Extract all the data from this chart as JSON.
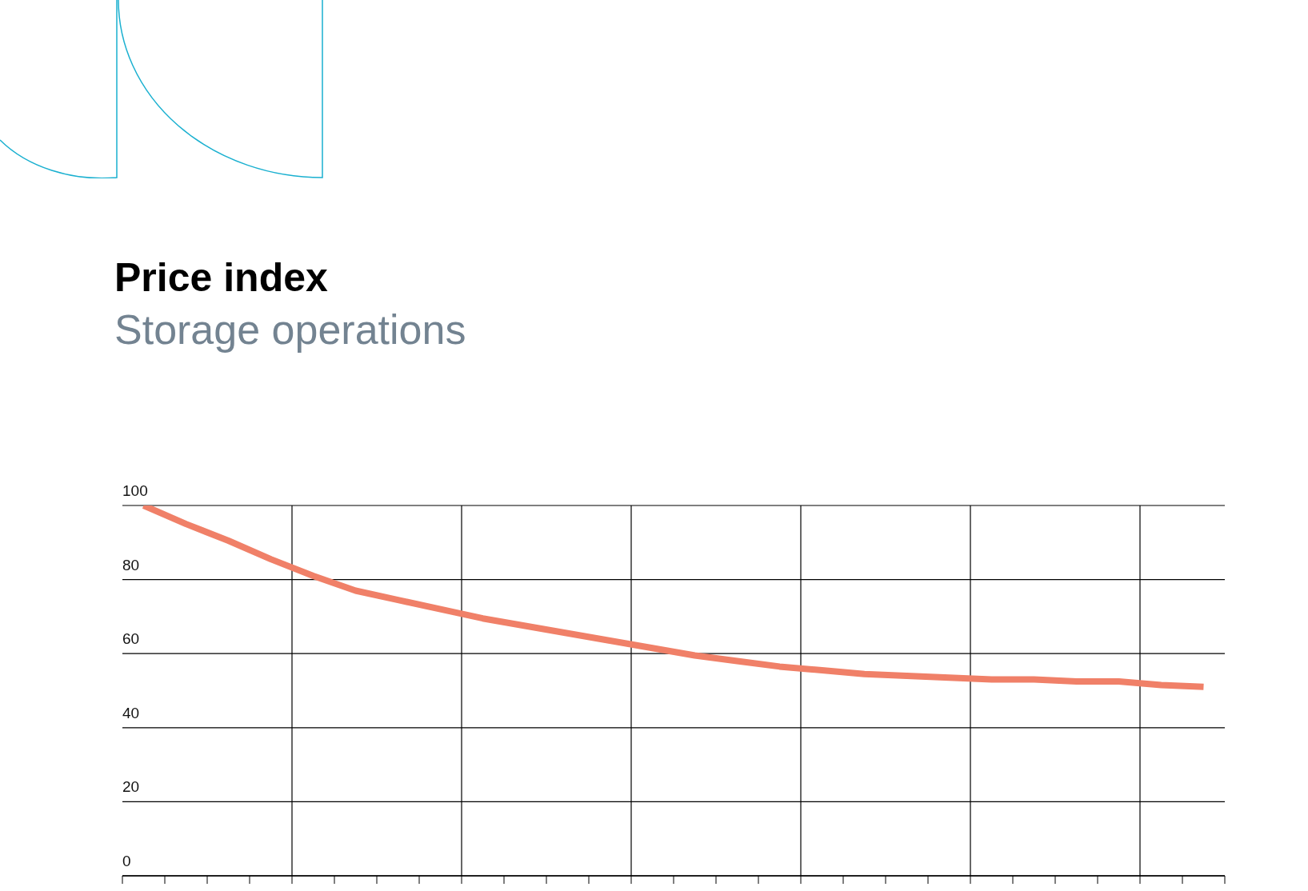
{
  "chart_data": {
    "type": "line",
    "title": "Price index",
    "subtitle": "Storage operations",
    "categories": [
      null,
      null,
      null,
      null,
      null,
      null,
      null,
      null,
      null,
      null,
      null,
      null,
      null,
      null,
      null,
      null,
      null,
      null,
      null,
      null,
      null,
      null,
      null,
      null,
      null,
      null
    ],
    "series": [
      {
        "color": "#f08068",
        "values": [
          100,
          95,
          90.5,
          85.5,
          81,
          77,
          74.5,
          72,
          69.5,
          67.5,
          65.5,
          63.5,
          61.5,
          59.5,
          58,
          56.5,
          55.5,
          54.5,
          54,
          53.5,
          53,
          53,
          52.5,
          52.5,
          51.5,
          51
        ]
      }
    ],
    "ylim": [
      0,
      100
    ],
    "yticks": [
      0,
      20,
      40,
      60,
      80,
      100
    ],
    "grid": true,
    "marker": "none",
    "line_style": "solid"
  }
}
